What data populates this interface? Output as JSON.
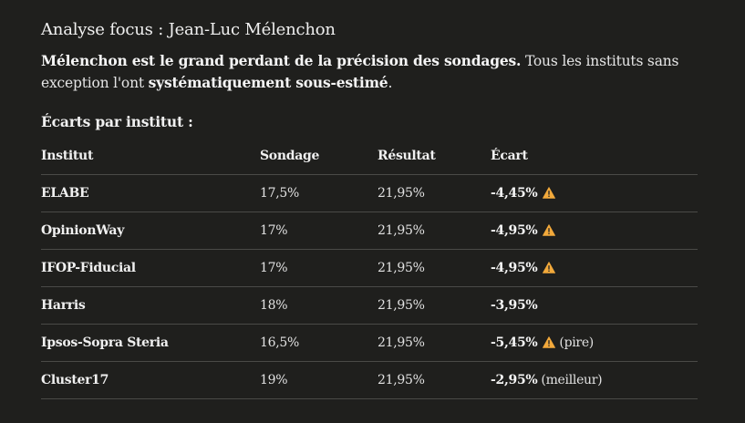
{
  "title": "Analyse focus : Jean-Luc Mélenchon",
  "intro": {
    "bold1": "Mélenchon est le grand perdant de la précision des sondages.",
    "text1": " Tous les instituts sans exception l'ont ",
    "bold2": "systématiquement sous-estimé",
    "text2": "."
  },
  "subtitle": "Écarts par institut :",
  "table": {
    "headers": [
      "Institut",
      "Sondage",
      "Résultat",
      "Écart"
    ],
    "rows": [
      {
        "institut": "ELABE",
        "sondage": "17,5%",
        "resultat": "21,95%",
        "ecart": "-4,45%",
        "warning": true,
        "note": ""
      },
      {
        "institut": "OpinionWay",
        "sondage": "17%",
        "resultat": "21,95%",
        "ecart": "-4,95%",
        "warning": true,
        "note": ""
      },
      {
        "institut": "IFOP-Fiducial",
        "sondage": "17%",
        "resultat": "21,95%",
        "ecart": "-4,95%",
        "warning": true,
        "note": ""
      },
      {
        "institut": "Harris",
        "sondage": "18%",
        "resultat": "21,95%",
        "ecart": "-3,95%",
        "warning": false,
        "note": ""
      },
      {
        "institut": "Ipsos-Sopra Steria",
        "sondage": "16,5%",
        "resultat": "21,95%",
        "ecart": "-5,45%",
        "warning": true,
        "note": "(pire)"
      },
      {
        "institut": "Cluster17",
        "sondage": "19%",
        "resultat": "21,95%",
        "ecart": "-2,95%",
        "warning": false,
        "note": "(meilleur)"
      }
    ]
  },
  "icons": {
    "warning": "warning-triangle-icon"
  },
  "colors": {
    "background": "#1f1f1d",
    "text": "#ececec",
    "warning": "#f2a93b",
    "divider": "#4a4a47"
  }
}
